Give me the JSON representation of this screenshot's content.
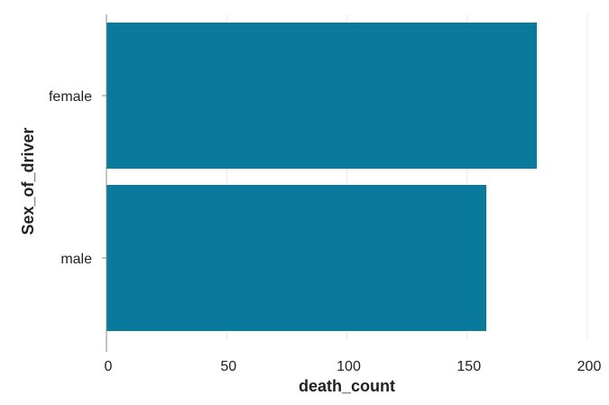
{
  "chart_data": {
    "type": "bar",
    "orientation": "horizontal",
    "categories": [
      "female",
      "male"
    ],
    "values": [
      179,
      158
    ],
    "title": "",
    "xlabel": "death_count",
    "ylabel": "Sex_of_driver",
    "xlim": [
      0,
      200
    ],
    "xticks": [
      "0",
      "50",
      "100",
      "150",
      "200"
    ],
    "grid": "vertical",
    "legend": "none",
    "colors": {
      "bar": "#0a7a9c",
      "grid": "#e8e8e8",
      "axis": "#888888",
      "text": "#222222"
    }
  }
}
